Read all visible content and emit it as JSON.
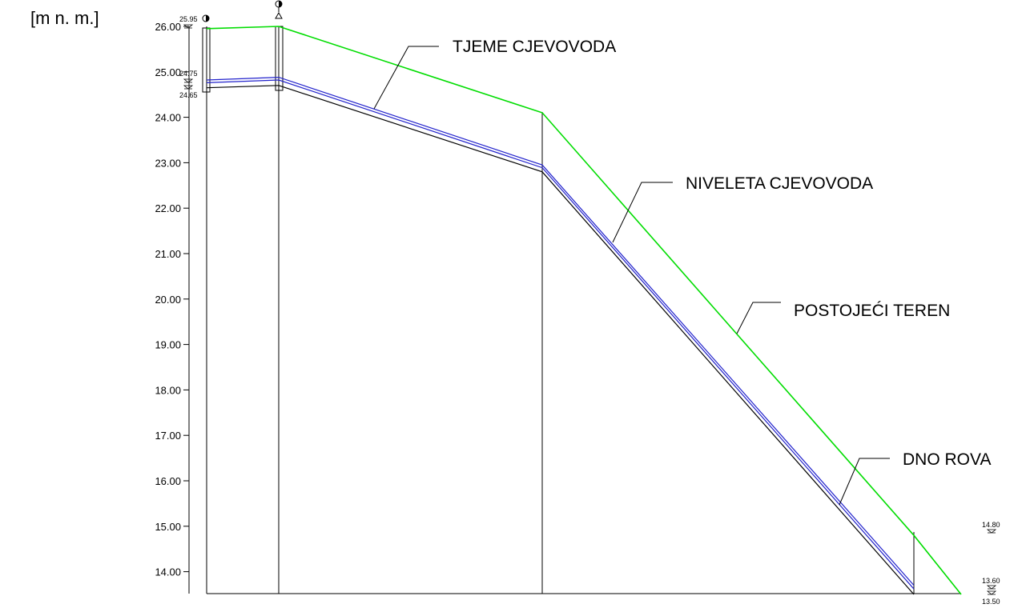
{
  "drawing": {
    "unit_label": "[m n. m.]",
    "line_colors": {
      "terrain": "#00dd00",
      "pipe": "#2222cc",
      "trench": "#000000",
      "frame": "#000000"
    }
  },
  "axis": {
    "ticks": [
      "26.00",
      "25.00",
      "24.00",
      "23.00",
      "22.00",
      "21.00",
      "20.00",
      "19.00",
      "18.00",
      "17.00",
      "16.00",
      "15.00",
      "14.00"
    ],
    "tick_values": [
      26,
      25,
      24,
      23,
      22,
      21,
      20,
      19,
      18,
      17,
      16,
      15,
      14
    ],
    "ylim": [
      13.5,
      26.0
    ]
  },
  "profile": {
    "terrain": [
      [
        0,
        25.95
      ],
      [
        1,
        26.0
      ],
      [
        2,
        24.1
      ],
      [
        3,
        14.8
      ],
      [
        4,
        13.5
      ]
    ],
    "pipe_top": [
      [
        0,
        24.82
      ],
      [
        1,
        24.88
      ],
      [
        2,
        22.95
      ],
      [
        3,
        13.7
      ]
    ],
    "pipe_bottom": [
      [
        0,
        24.76
      ],
      [
        1,
        24.82
      ],
      [
        2,
        22.89
      ],
      [
        3,
        13.62
      ]
    ],
    "trench": [
      [
        0,
        24.65
      ],
      [
        1,
        24.7
      ],
      [
        2,
        22.8
      ],
      [
        3,
        13.5
      ]
    ]
  },
  "leaders": {
    "tjeme": "TJEME CJEVOVODA",
    "niveleta": "NIVELETA CJEVOVODA",
    "teren": "POSTOJEĆI TEREN",
    "dno": "DNO ROVA"
  },
  "elevations": {
    "start_terrain": "25.95",
    "start_pipe": "24.75",
    "start_trench": "24.65",
    "end_terrain": "14.80",
    "end_pipe": "13.60",
    "end_trench": "13.50"
  },
  "icons": [
    "manhole-icon",
    "valve-icon"
  ]
}
